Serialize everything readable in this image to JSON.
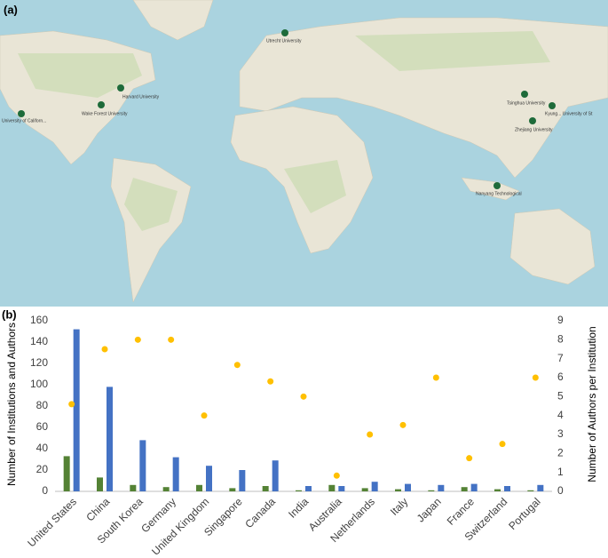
{
  "map": {
    "label": "(a)",
    "pins": [
      "University of Californ...",
      "Harvard University",
      "Wake Forest University",
      "Utrecht University",
      "Tsinghua University",
      "Zhejiang University",
      "Nanyang Technological",
      "Kyung... University of St"
    ]
  },
  "chart_data": {
    "type": "bar",
    "label": "(b)",
    "y_label": "Number of Institutions and Authors",
    "y2_label": "Number of Authors per Institution",
    "categories": [
      "United States",
      "China",
      "South Korea",
      "Germany",
      "United Kingdom",
      "Singapore",
      "Canada",
      "India",
      "Australia",
      "Netherlands",
      "Italy",
      "Japan",
      "France",
      "Switzerland",
      "Portugal"
    ],
    "series": [
      {
        "color": "#548235",
        "values": [
          33,
          13,
          6,
          4,
          6,
          3,
          5,
          1,
          6,
          3,
          2,
          1,
          4,
          2,
          1
        ]
      },
      {
        "color": "#4472c4",
        "values": [
          152,
          98,
          48,
          32,
          24,
          20,
          29,
          5,
          5,
          9,
          7,
          6,
          7,
          5,
          6
        ]
      },
      {
        "type": "scatter",
        "axis": "y2",
        "color": "#ffc000",
        "values": [
          4.6,
          7.5,
          8,
          8,
          4,
          6.67,
          5.8,
          5,
          0.83,
          3,
          3.5,
          6,
          1.75,
          2.5,
          6
        ]
      }
    ],
    "ylim": [
      0,
      160
    ],
    "yticks": [
      0,
      20,
      40,
      60,
      80,
      100,
      120,
      140,
      160
    ],
    "y2lim": [
      0,
      9
    ],
    "y2ticks": [
      0,
      1,
      2,
      3,
      4,
      5,
      6,
      7,
      8,
      9
    ],
    "grid": false
  }
}
